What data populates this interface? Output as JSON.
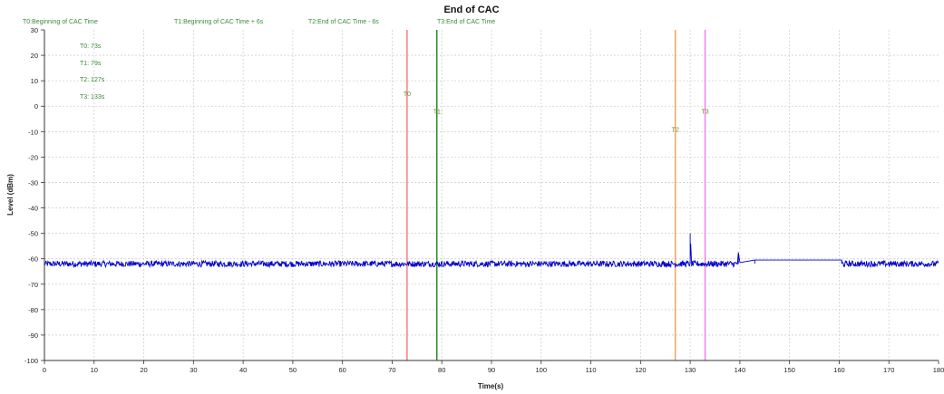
{
  "chart_data": {
    "type": "line",
    "title": "End of CAC",
    "xlabel": "Time(s)",
    "ylabel": "Level (dBm)",
    "xlim": [
      0,
      180
    ],
    "ylim": [
      -100,
      30
    ],
    "x_ticks": [
      "0",
      "10",
      "20",
      "30",
      "40",
      "50",
      "60",
      "70",
      "80",
      "90",
      "100",
      "110",
      "120",
      "130",
      "140",
      "150",
      "160",
      "170",
      "180"
    ],
    "y_ticks": [
      "30",
      "20",
      "10",
      "0",
      "-10",
      "-20",
      "-30",
      "-40",
      "-50",
      "-60",
      "-70",
      "-80",
      "-90",
      "-100"
    ],
    "grid": true,
    "legend_entries": [
      "T0:Beginning of CAC Time",
      "T1:Beginning of CAC Time + 6s",
      "T2:End of CAC Time - 6s",
      "T3:End of CAC Time"
    ],
    "info_lines": [
      "T0: 73s",
      "T1: 79s",
      "T2: 127s",
      "T3: 133s"
    ],
    "markers": [
      {
        "label": "T0",
        "x": 73,
        "color": "#f08080",
        "label_y": 4
      },
      {
        "label": "T1:",
        "x": 79,
        "color": "#2e8b2e",
        "label_y": -3
      },
      {
        "label": "T2",
        "x": 127,
        "color": "#f4a460",
        "label_y": -10
      },
      {
        "label": "T3",
        "x": 133,
        "color": "#ee82ee",
        "label_y": -3
      }
    ],
    "series": [
      {
        "color": "#0000cc",
        "baseline": -62,
        "noise_amplitude": 1.2,
        "x_step": 0.1,
        "x": [
          0,
          130,
          130,
          130.3,
          139.5,
          139.7,
          140,
          143,
          160.5
        ],
        "y": [
          -62,
          -62,
          -50,
          -62,
          -62,
          -57.5,
          -61.5,
          -60.5,
          -60.5
        ]
      }
    ]
  }
}
